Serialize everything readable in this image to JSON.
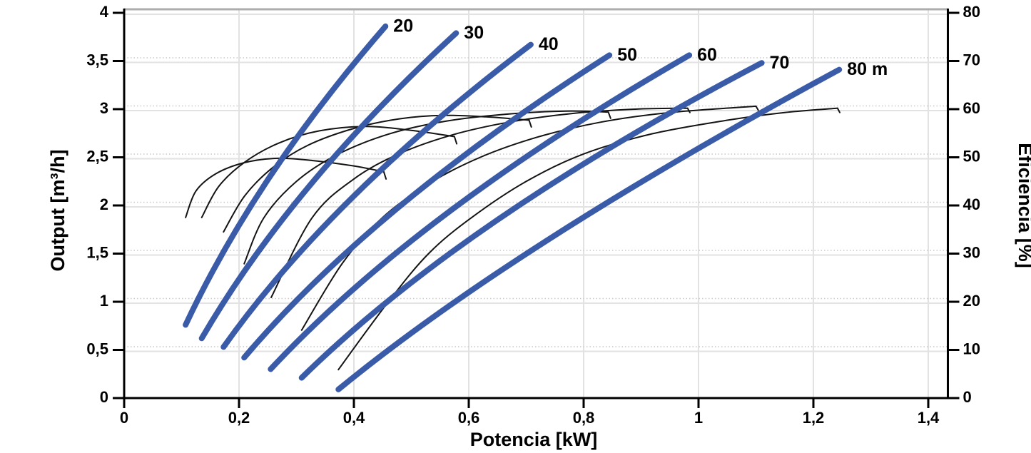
{
  "chart_data": {
    "type": "line",
    "title": "",
    "x_axis": {
      "label": "Potencia [kW]",
      "min": 0,
      "max": 1.4,
      "ticks": [
        0,
        0.2,
        0.4,
        0.6,
        0.8,
        1,
        1.2,
        1.4
      ],
      "tick_labels": [
        "0",
        "0,2",
        "0,4",
        "0,6",
        "0,8",
        "1",
        "1,2",
        "1,4"
      ],
      "grid": true
    },
    "y_left": {
      "label": "Output [m³/h]",
      "min": 0,
      "max": 4,
      "ticks": [
        0,
        0.5,
        1,
        1.5,
        2,
        2.5,
        3,
        3.5,
        4
      ],
      "tick_labels": [
        "0",
        "0,5",
        "1",
        "1,5",
        "2",
        "2,5",
        "3",
        "3,5",
        "4"
      ],
      "grid": true
    },
    "y_right": {
      "label": "Eficiencia [%]",
      "min": 0,
      "max": 80,
      "ticks": [
        0,
        10,
        20,
        30,
        40,
        50,
        60,
        70,
        80
      ],
      "tick_labels": [
        "0",
        "10",
        "20",
        "30",
        "40",
        "50",
        "60",
        "70",
        "80"
      ],
      "grid": "dotted"
    },
    "colors": {
      "head_curve": "#3a5ba8",
      "efficiency_curve": "#141414",
      "grid_solid": "#e2e2e2",
      "grid_dotted": "#c9c9c9",
      "axis": "#000000",
      "plot_top_border": "#adadad"
    },
    "head_curves": [
      {
        "label": "20",
        "head_m": 20,
        "axis": "y_left",
        "units": "m³/h vs kW",
        "p0": [
          0.107,
          0.76
        ],
        "c": [
          0.229,
          2.31
        ],
        "p1": [
          0.455,
          3.86
        ]
      },
      {
        "label": "30",
        "head_m": 30,
        "axis": "y_left",
        "units": "m³/h vs kW",
        "p0": [
          0.135,
          0.62
        ],
        "c": [
          0.29,
          2.21
        ],
        "p1": [
          0.578,
          3.79
        ]
      },
      {
        "label": "40",
        "head_m": 40,
        "axis": "y_left",
        "units": "m³/h vs kW",
        "p0": [
          0.173,
          0.53
        ],
        "c": [
          0.36,
          2.1
        ],
        "p1": [
          0.708,
          3.67
        ]
      },
      {
        "label": "50",
        "head_m": 50,
        "axis": "y_left",
        "units": "m³/h vs kW",
        "p0": [
          0.209,
          0.42
        ],
        "c": [
          0.432,
          1.99
        ],
        "p1": [
          0.845,
          3.56
        ]
      },
      {
        "label": "60",
        "head_m": 60,
        "axis": "y_left",
        "units": "m³/h vs kW",
        "p0": [
          0.255,
          0.3
        ],
        "c": [
          0.51,
          1.93
        ],
        "p1": [
          0.984,
          3.56
        ]
      },
      {
        "label": "70",
        "head_m": 70,
        "axis": "y_left",
        "units": "m³/h vs kW",
        "p0": [
          0.309,
          0.21
        ],
        "c": [
          0.589,
          1.85
        ],
        "p1": [
          1.11,
          3.48
        ]
      },
      {
        "label": "80 m",
        "head_m": 80,
        "axis": "y_left",
        "units": "m³/h vs kW",
        "p0": [
          0.373,
          0.09
        ],
        "c": [
          0.678,
          1.58
        ],
        "p1": [
          1.245,
          3.41
        ]
      }
    ],
    "efficiency_curves": [
      {
        "head_m": 20,
        "axis": "y_right",
        "units": "% vs kW",
        "points": [
          [
            0.107,
            37.5
          ],
          [
            0.125,
            43.0
          ],
          [
            0.16,
            46.6
          ],
          [
            0.21,
            48.9
          ],
          [
            0.268,
            49.8
          ],
          [
            0.33,
            49.3
          ],
          [
            0.4,
            48.2
          ],
          [
            0.452,
            47.0
          ],
          [
            0.456,
            45.5
          ]
        ]
      },
      {
        "head_m": 30,
        "axis": "y_right",
        "units": "% vs kW",
        "points": [
          [
            0.135,
            37.5
          ],
          [
            0.165,
            44.0
          ],
          [
            0.21,
            49.0
          ],
          [
            0.27,
            53.0
          ],
          [
            0.34,
            55.5
          ],
          [
            0.42,
            56.4
          ],
          [
            0.5,
            55.6
          ],
          [
            0.575,
            54.3
          ],
          [
            0.579,
            52.8
          ]
        ]
      },
      {
        "head_m": 40,
        "axis": "y_right",
        "units": "% vs kW",
        "points": [
          [
            0.173,
            34.5
          ],
          [
            0.21,
            42.0
          ],
          [
            0.26,
            48.0
          ],
          [
            0.32,
            52.5
          ],
          [
            0.4,
            56.0
          ],
          [
            0.48,
            58.0
          ],
          [
            0.555,
            58.7
          ],
          [
            0.63,
            58.4
          ],
          [
            0.705,
            57.7
          ],
          [
            0.709,
            56.3
          ]
        ]
      },
      {
        "head_m": 50,
        "axis": "y_right",
        "units": "% vs kW",
        "points": [
          [
            0.209,
            27.9
          ],
          [
            0.243,
            37.4
          ],
          [
            0.3,
            45.0
          ],
          [
            0.37,
            50.5
          ],
          [
            0.46,
            54.8
          ],
          [
            0.56,
            57.5
          ],
          [
            0.67,
            59.0
          ],
          [
            0.77,
            59.6
          ],
          [
            0.843,
            59.4
          ],
          [
            0.847,
            58.1
          ]
        ]
      },
      {
        "head_m": 60,
        "axis": "y_right",
        "units": "% vs kW",
        "points": [
          [
            0.256,
            20.9
          ],
          [
            0.327,
            37.4
          ],
          [
            0.4,
            45.5
          ],
          [
            0.48,
            50.8
          ],
          [
            0.57,
            54.6
          ],
          [
            0.67,
            57.3
          ],
          [
            0.78,
            59.1
          ],
          [
            0.89,
            60.0
          ],
          [
            0.981,
            60.2
          ],
          [
            0.985,
            59.3
          ]
        ]
      },
      {
        "head_m": 70,
        "axis": "y_right",
        "units": "% vs kW",
        "points": [
          [
            0.309,
            14.1
          ],
          [
            0.38,
            28.0
          ],
          [
            0.449,
            37.4
          ],
          [
            0.53,
            44.5
          ],
          [
            0.62,
            50.0
          ],
          [
            0.72,
            54.2
          ],
          [
            0.83,
            57.3
          ],
          [
            0.95,
            59.3
          ],
          [
            1.1,
            60.6
          ],
          [
            1.104,
            59.8
          ]
        ]
      },
      {
        "head_m": 80,
        "axis": "y_right",
        "units": "% vs kW",
        "points": [
          [
            0.373,
            5.9
          ],
          [
            0.46,
            20.0
          ],
          [
            0.53,
            30.0
          ],
          [
            0.604,
            37.4
          ],
          [
            0.7,
            45.0
          ],
          [
            0.8,
            50.7
          ],
          [
            0.92,
            54.9
          ],
          [
            1.05,
            57.7
          ],
          [
            1.15,
            59.3
          ],
          [
            1.242,
            60.2
          ],
          [
            1.246,
            59.3
          ]
        ]
      }
    ]
  }
}
